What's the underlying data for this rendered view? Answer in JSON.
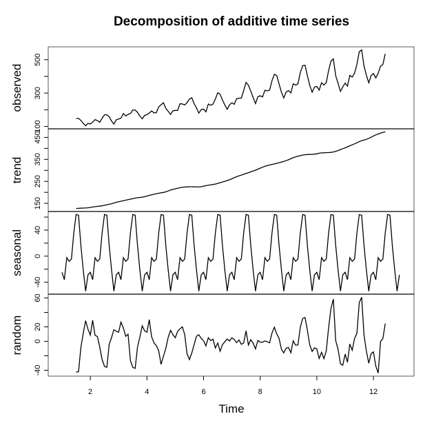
{
  "chart_data": {
    "type": "line",
    "title": "Decomposition of additive time series",
    "xlabel": "Time",
    "xlim": [
      1,
      12.917
    ],
    "start": 1,
    "frequency": 12,
    "x_ticks": [
      2,
      4,
      6,
      8,
      10,
      12
    ],
    "line_color": "#000000",
    "observed": [
      112,
      118,
      132,
      129,
      121,
      135,
      148,
      148,
      136,
      119,
      104,
      118,
      115,
      126,
      141,
      135,
      125,
      149,
      170,
      170,
      158,
      133,
      114,
      140,
      145,
      150,
      178,
      163,
      172,
      178,
      199,
      199,
      184,
      162,
      146,
      166,
      171,
      180,
      193,
      181,
      183,
      218,
      230,
      242,
      209,
      191,
      172,
      194,
      196,
      196,
      236,
      235,
      229,
      243,
      264,
      272,
      237,
      211,
      180,
      201,
      204,
      188,
      235,
      227,
      234,
      264,
      302,
      293,
      259,
      229,
      203,
      229,
      242,
      233,
      267,
      269,
      270,
      315,
      364,
      347,
      312,
      274,
      237,
      278,
      284,
      277,
      317,
      313,
      318,
      374,
      413,
      405,
      355,
      306,
      271,
      306,
      315,
      301,
      356,
      348,
      355,
      422,
      465,
      467,
      404,
      347,
      305,
      336,
      340,
      318,
      362,
      348,
      363,
      435,
      491,
      505,
      404,
      359,
      310,
      337,
      360,
      342,
      406,
      396,
      420,
      472,
      548,
      559,
      463,
      407,
      362,
      405,
      417,
      391,
      419,
      461,
      472,
      535,
      622,
      606,
      508,
      461,
      390,
      432
    ],
    "seasonal_figure": [
      -24.748737,
      -36.188131,
      -2.241162,
      -8.036616,
      -4.506313,
      35.402778,
      63.830808,
      62.823232,
      16.520202,
      -20.642677,
      -53.593434,
      -28.619949
    ],
    "panels": [
      {
        "name": "observed",
        "ylabel": "observed",
        "ticks": [
          100,
          200,
          300,
          400,
          500
        ],
        "tick_labels": [
          "100",
          "300",
          "500"
        ]
      },
      {
        "name": "trend",
        "ylabel": "trend",
        "ticks": [
          150,
          200,
          250,
          300,
          350,
          400,
          450
        ],
        "tick_labels": [
          "150",
          "250",
          "350",
          "450"
        ]
      },
      {
        "name": "seasonal",
        "ylabel": "seasonal",
        "ticks": [
          -40,
          -20,
          0,
          20,
          40,
          60
        ],
        "tick_labels": [
          "-40",
          "0",
          "40"
        ]
      },
      {
        "name": "random",
        "ylabel": "random",
        "ticks": [
          -40,
          -20,
          0,
          20,
          40,
          60
        ],
        "tick_labels": [
          "-40",
          "0",
          "20",
          "60"
        ]
      }
    ]
  }
}
